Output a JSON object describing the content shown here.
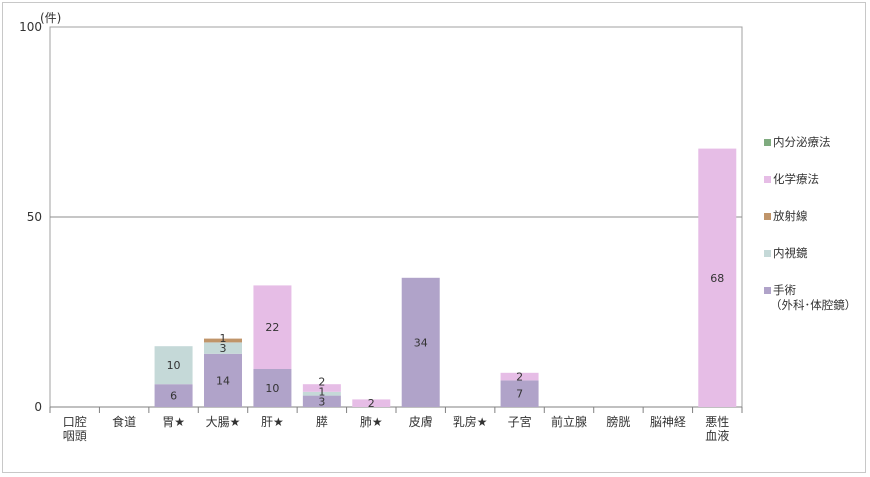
{
  "chart_data": {
    "type": "bar",
    "stacked": true,
    "ylabel": "(件)",
    "ylim": [
      0,
      100
    ],
    "yticks": [
      0,
      50,
      100
    ],
    "grid": true,
    "legend_position": "right",
    "categories": [
      [
        "口腔",
        "咽頭"
      ],
      [
        "食道"
      ],
      [
        "胃★"
      ],
      [
        "大腸★"
      ],
      [
        "肝★"
      ],
      [
        "膵"
      ],
      [
        "肺★"
      ],
      [
        "皮膚"
      ],
      [
        "乳房★"
      ],
      [
        "子宮"
      ],
      [
        "前立腺"
      ],
      [
        "膀胱"
      ],
      [
        "脳神経"
      ],
      [
        "悪性",
        "血液"
      ]
    ],
    "series": [
      {
        "name": "手術",
        "name_line2": "（外科･体腔鏡）",
        "color": "#b0a3c9",
        "values": [
          0,
          0,
          6,
          14,
          10,
          3,
          0,
          34,
          0,
          7,
          0,
          0,
          0,
          0
        ],
        "labels": [
          null,
          null,
          "6",
          "14",
          "10",
          "3",
          null,
          "34",
          null,
          "7",
          null,
          null,
          null,
          null
        ]
      },
      {
        "name": "内視鏡",
        "color": "#c5d9d8",
        "values": [
          0,
          0,
          10,
          3,
          0,
          1,
          0,
          0,
          0,
          0,
          0,
          0,
          0,
          0
        ],
        "labels": [
          null,
          null,
          "10",
          "3",
          null,
          "1",
          null,
          null,
          null,
          null,
          null,
          null,
          null,
          null
        ]
      },
      {
        "name": "放射線",
        "color": "#c0956a",
        "values": [
          0,
          0,
          0,
          1,
          0,
          0,
          0,
          0,
          0,
          0,
          0,
          0,
          0,
          0
        ],
        "labels": [
          null,
          null,
          null,
          "1",
          null,
          null,
          null,
          null,
          null,
          null,
          null,
          null,
          null,
          null
        ]
      },
      {
        "name": "化学療法",
        "color": "#e6bde6",
        "values": [
          0,
          0,
          0,
          0,
          22,
          2,
          2,
          0,
          0,
          2,
          0,
          0,
          0,
          68
        ],
        "labels": [
          null,
          null,
          null,
          null,
          "22",
          "2",
          "2",
          null,
          null,
          "2",
          null,
          null,
          null,
          "68"
        ]
      },
      {
        "name": "内分泌療法",
        "color": "#7fab7f",
        "values": [
          0,
          0,
          0,
          0,
          0,
          0,
          0,
          0,
          0,
          0,
          0,
          0,
          0,
          0
        ],
        "labels": [
          null,
          null,
          null,
          null,
          null,
          null,
          null,
          null,
          null,
          null,
          null,
          null,
          null,
          null
        ]
      }
    ]
  }
}
